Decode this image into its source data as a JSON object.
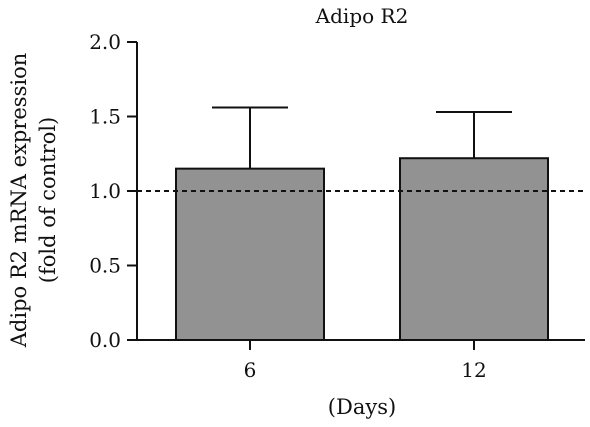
{
  "chart_data": {
    "type": "bar",
    "title": "Adipo R2",
    "xlabel": "(Days)",
    "ylabel_lines": [
      "Adipo R2 mRNA expression",
      "(fold of control)"
    ],
    "categories": [
      "6",
      "12"
    ],
    "values": [
      1.15,
      1.22
    ],
    "error_upper": [
      0.41,
      0.31
    ],
    "ylim": [
      0.0,
      2.0
    ],
    "yticks": [
      "0.0",
      "0.5",
      "1.0",
      "1.5",
      "2.0"
    ],
    "reference_line": 1.0,
    "grid": false,
    "bar_color": "#929292"
  }
}
